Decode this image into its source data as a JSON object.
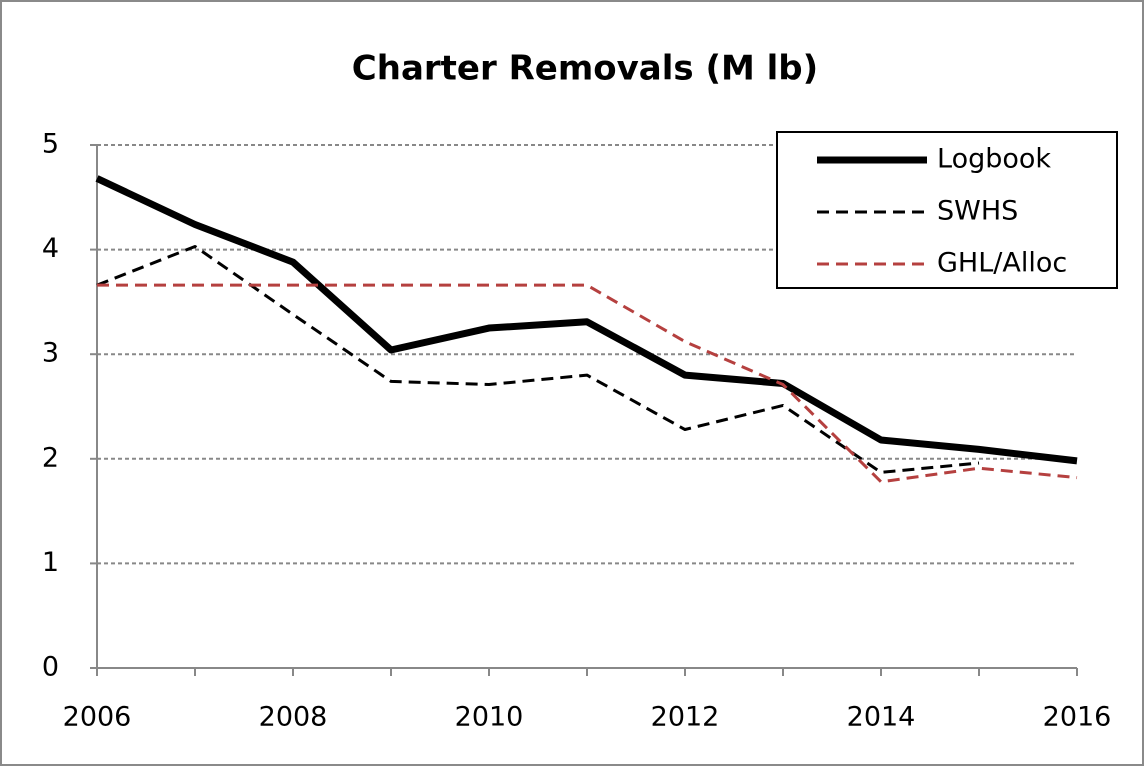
{
  "chart_data": {
    "type": "line",
    "title": "Charter Removals (M lb)",
    "x": [
      2006,
      2007,
      2008,
      2009,
      2010,
      2011,
      2012,
      2013,
      2014,
      2015,
      2016
    ],
    "xlim": [
      2006,
      2016
    ],
    "xticks": [
      2006,
      2008,
      2010,
      2012,
      2014,
      2016
    ],
    "ylim": [
      0,
      5
    ],
    "yticks": [
      0,
      1,
      2,
      3,
      4,
      5
    ],
    "grid": true,
    "legend": "top-right",
    "series": [
      {
        "name": "Logbook",
        "color": "#000000",
        "width": 7,
        "dashed": false,
        "values": [
          4.68,
          4.24,
          3.88,
          3.04,
          3.25,
          3.31,
          2.8,
          2.72,
          2.18,
          2.09,
          1.98
        ]
      },
      {
        "name": "SWHS",
        "color": "#000000",
        "width": 3,
        "dashed": true,
        "values": [
          3.66,
          4.03,
          3.38,
          2.74,
          2.71,
          2.8,
          2.28,
          2.51,
          1.87,
          1.96,
          null
        ]
      },
      {
        "name": "GHL/Alloc",
        "color": "#b5403f",
        "width": 3,
        "dashed": true,
        "values": [
          3.66,
          3.66,
          3.66,
          3.66,
          3.66,
          3.66,
          3.12,
          2.71,
          1.78,
          1.91,
          1.82
        ]
      }
    ]
  }
}
